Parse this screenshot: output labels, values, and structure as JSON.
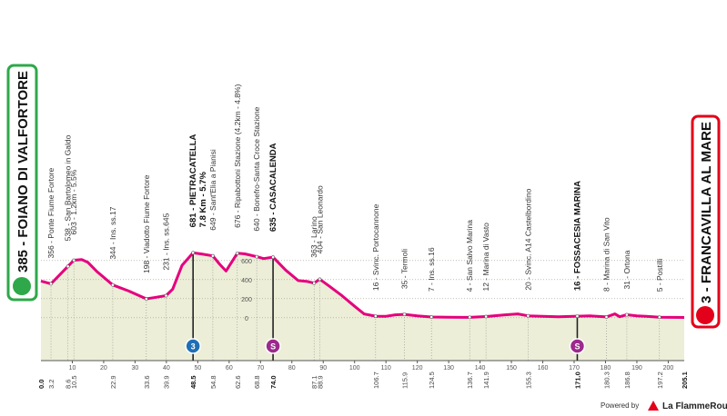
{
  "chart_data": {
    "type": "area",
    "start": "385 - FOIANO DI VALFORTORE",
    "finish": "3 - FRANCAVILLA AL MARE",
    "start_km": {
      "value": 0,
      "label": "0.0"
    },
    "finish_km": 205.1,
    "x": [
      0,
      3.2,
      8.6,
      10.5,
      13,
      15,
      18,
      22.9,
      28,
      33.6,
      36,
      39.9,
      42,
      45,
      48.5,
      51,
      54.8,
      57,
      59,
      62.6,
      65,
      68.8,
      71,
      74,
      78,
      82,
      85,
      87.1,
      88.9,
      92,
      96,
      100,
      103,
      106.7,
      110,
      113,
      115.9,
      120,
      124.5,
      130,
      136.7,
      141.9,
      148,
      152,
      155.3,
      160,
      165,
      171,
      175,
      180.3,
      183,
      184.5,
      186.8,
      190,
      193,
      197.2,
      201,
      205.1
    ],
    "values": [
      385,
      356,
      538,
      603,
      610,
      580,
      480,
      344,
      280,
      198,
      210,
      231,
      300,
      550,
      681,
      670,
      649,
      560,
      490,
      676,
      670,
      640,
      620,
      635,
      500,
      390,
      380,
      363,
      404,
      330,
      230,
      120,
      40,
      16,
      15,
      30,
      35,
      20,
      7,
      5,
      4,
      12,
      30,
      40,
      20,
      15,
      10,
      16,
      20,
      8,
      40,
      10,
      31,
      20,
      15,
      5,
      4,
      3
    ],
    "color": "#e5007d",
    "fill": "#eceed8",
    "xlim": [
      0,
      205.1
    ],
    "xticks": [
      10,
      20,
      30,
      40,
      50,
      60,
      70,
      80,
      90,
      100,
      110,
      120,
      130,
      140,
      150,
      160,
      170,
      180,
      190,
      200
    ],
    "ylim": [
      -450,
      2590
    ],
    "yticks": [
      0,
      200,
      400,
      600
    ],
    "grid": true,
    "waypoints": [
      {
        "km": 3.2,
        "label": "356 - Ponte Fiume Fortore"
      },
      {
        "km": 8.6,
        "label": "538 - San Bartolomeo in Galdo"
      },
      {
        "km": 10.5,
        "label": "603 - 1.2km - 5.5%"
      },
      {
        "km": 22.9,
        "label": "344 - Ins. ss.17"
      },
      {
        "km": 33.6,
        "label": "198 - Viadotto Fiume Fortore"
      },
      {
        "km": 39.9,
        "label": "231 - Ins. ss.645"
      },
      {
        "km": 48.5,
        "label": "681 - PIETRACATELLA",
        "label2": "7.8 Km - 5.7%",
        "bold": true,
        "marker": "3",
        "marker_type": "climb"
      },
      {
        "km": 54.8,
        "label": "649 - Sant'Elia a Pianisi"
      },
      {
        "km": 62.6,
        "label": "676 - Ripabottoni Stazione (4.2km - 4.8%)"
      },
      {
        "km": 68.8,
        "label": "640 - Bonefro-Santa Croce Stazione"
      },
      {
        "km": {
          "value": 74,
          "label": "74.0"
        },
        "label": "635 - CASACALENDA",
        "bold": true,
        "marker": "S",
        "marker_type": "sprint"
      },
      {
        "km": 87.1,
        "label": "363 - Larino"
      },
      {
        "km": 88.9,
        "label": "404 - San Leonardo"
      },
      {
        "km": 106.7,
        "label": "16 - Svinc. Portocannone"
      },
      {
        "km": 115.9,
        "label": "35 - Termoli"
      },
      {
        "km": 124.5,
        "label": "7 - Ins. ss.16"
      },
      {
        "km": 136.7,
        "label": "4 - San Salvo Marina"
      },
      {
        "km": 141.9,
        "label": "12 - Marina di Vasto"
      },
      {
        "km": 155.3,
        "label": "20 - Svinc. A14 Castelbordino"
      },
      {
        "km": {
          "value": 171,
          "label": "171.0"
        },
        "label": "16 - FOSSACESIA MARINA",
        "bold": true,
        "marker": "S",
        "marker_type": "sprint"
      },
      {
        "km": 180.3,
        "label": "8 - Marina di San Vito"
      },
      {
        "km": 186.8,
        "label": "31 - Ortona"
      },
      {
        "km": 197.2,
        "label": "5 - Postilli"
      }
    ]
  },
  "footer": {
    "powered_by": "Powered by",
    "brand": "La FlammeRouge"
  }
}
